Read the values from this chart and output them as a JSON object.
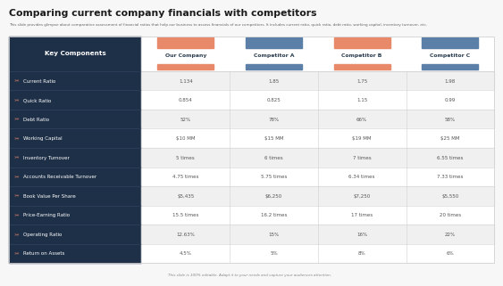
{
  "title": "Comparing current company financials with competitors",
  "subtitle": "This slide provides glimpse about comparative assessment of financial ratios that help our business to assess financials of our competitors. It includes current ratio, quick ratio, debt ratio, working capital, inventory turnover, etc.",
  "footer": "This slide is 100% editable. Adapt it to your needs and capture your audiences attention.",
  "col_headers": [
    "Our Company",
    "Competitor A",
    "Competitor B",
    "Competitor C"
  ],
  "col_colors": [
    "#e8896a",
    "#5b7fa6",
    "#e8896a",
    "#5b7fa6"
  ],
  "row_label": "Key Components",
  "rows": [
    {
      "label": "Current Ratio",
      "values": [
        "1.134",
        "1.85",
        "1.75",
        "1.98"
      ]
    },
    {
      "label": "Quick Ratio",
      "values": [
        "0.854",
        "0.825",
        "1.15",
        "0.99"
      ]
    },
    {
      "label": "Debt Ratio",
      "values": [
        "52%",
        "78%",
        "66%",
        "58%"
      ]
    },
    {
      "label": "Working Capital",
      "values": [
        "$10 MM",
        "$15 MM",
        "$19 MM",
        "$25 MM"
      ]
    },
    {
      "label": "Inventory Turnover",
      "values": [
        "5 times",
        "6 times",
        "7 times",
        "6.55 times"
      ]
    },
    {
      "label": "Accounts Receivable Turnover",
      "values": [
        "4.75 times",
        "5.75 times",
        "6.34 times",
        "7.33 times"
      ]
    },
    {
      "label": "Book Value Per Share",
      "values": [
        "$5,435",
        "$6,250",
        "$7,250",
        "$5,550"
      ]
    },
    {
      "label": "Price-Earning Ratio",
      "values": [
        "15.5 times",
        "16.2 times",
        "17 times",
        "20 times"
      ]
    },
    {
      "label": "Operating Ratio",
      "values": [
        "12.63%",
        "15%",
        "16%",
        "22%"
      ]
    },
    {
      "label": "Return on Assets",
      "values": [
        "4.5%",
        "5%",
        "8%",
        "6%"
      ]
    }
  ],
  "left_col_bg": "#1e3048",
  "row_bg_odd": "#f0f0f0",
  "row_bg_even": "#ffffff",
  "header_text": "#2c3e50",
  "value_text": "#555555",
  "grid_color": "#d0d0d0",
  "title_color": "#1a1a1a",
  "subtitle_color": "#666666",
  "footer_color": "#888888",
  "bg_color": "#f7f7f7"
}
